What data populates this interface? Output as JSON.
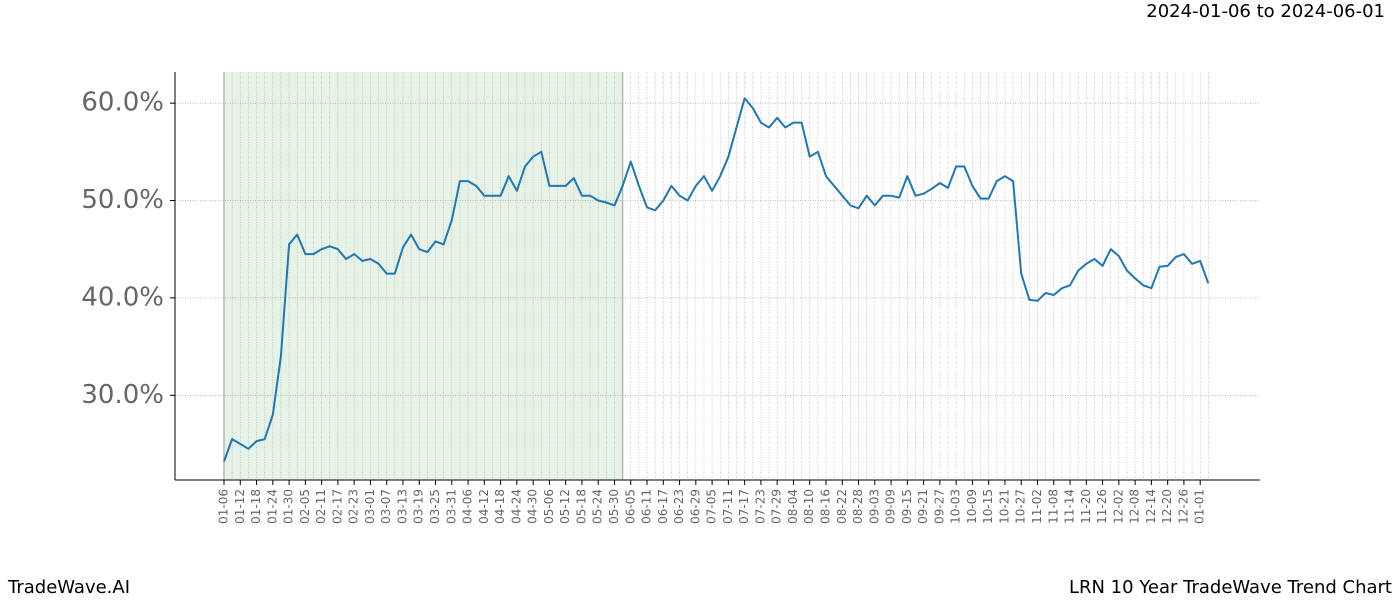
{
  "chart_data": {
    "type": "line",
    "subtitle": "2024-01-06 to 2024-06-01",
    "footer_left": "TradeWave.AI",
    "footer_right": "LRN 10 Year TradeWave Trend Chart",
    "categories": [
      "01-06",
      null,
      "01-12",
      null,
      "01-18",
      null,
      "01-24",
      null,
      "01-30",
      null,
      "02-05",
      null,
      "02-11",
      null,
      "02-17",
      null,
      "02-23",
      null,
      "03-01",
      null,
      "03-07",
      null,
      "03-13",
      null,
      "03-19",
      null,
      "03-25",
      null,
      "03-31",
      null,
      "04-06",
      null,
      "04-12",
      null,
      "04-18",
      null,
      "04-24",
      null,
      "04-30",
      null,
      "05-06",
      null,
      "05-12",
      null,
      "05-18",
      null,
      "05-24",
      null,
      "05-30",
      null,
      "06-05",
      null,
      "06-11",
      null,
      "06-17",
      null,
      "06-23",
      null,
      "06-29",
      null,
      "07-05",
      null,
      "07-11",
      null,
      "07-17",
      null,
      "07-23",
      null,
      "07-29",
      null,
      "08-04",
      null,
      "08-10",
      null,
      "08-16",
      null,
      "08-22",
      null,
      "08-28",
      null,
      "09-03",
      null,
      "09-09",
      null,
      "09-15",
      null,
      "09-21",
      null,
      "09-27",
      null,
      "10-03",
      null,
      "10-09",
      null,
      "10-15",
      null,
      "10-21",
      null,
      "10-27",
      null,
      "11-02",
      null,
      "11-08",
      null,
      "11-14",
      null,
      "11-20",
      null,
      "11-26",
      null,
      "12-02",
      null,
      "12-08",
      null,
      "12-14",
      null,
      "12-20",
      null,
      "12-26",
      null,
      "01-01",
      null
    ],
    "series": [
      {
        "name": "LRN",
        "color": "#1f77b4",
        "values": [
          23.2,
          25.5,
          25,
          24.5,
          25.3,
          25.5,
          28,
          34,
          45.5,
          46.5,
          44.5,
          44.5,
          45,
          45.3,
          45,
          44,
          44.5,
          43.8,
          44,
          43.5,
          42.5,
          42.5,
          45.2,
          46.5,
          45,
          44.7,
          45.8,
          45.5,
          48,
          52,
          52,
          51.5,
          50.5,
          50.5,
          50.5,
          52.5,
          51,
          53.5,
          54.5,
          55,
          51.5,
          51.5,
          51.5,
          52.3,
          50.5,
          50.5,
          50,
          49.8,
          49.5,
          51.5,
          54,
          51.5,
          49.3,
          49,
          50,
          51.5,
          50.5,
          50,
          51.5,
          52.5,
          51,
          52.5,
          54.5,
          57.5,
          60.5,
          59.5,
          58,
          57.5,
          58.5,
          57.5,
          58,
          58,
          54.5,
          55,
          52.5,
          51.5,
          50.5,
          49.5,
          49.2,
          50.5,
          49.5,
          50.5,
          50.5,
          50.3,
          52.5,
          50.5,
          50.7,
          51.2,
          51.8,
          51.3,
          53.5,
          53.5,
          51.5,
          50.2,
          50.2,
          52,
          52.5,
          52,
          42.5,
          39.8,
          39.7,
          40.5,
          40.3,
          41,
          41.3,
          42.8,
          43.5,
          44,
          43.3,
          45,
          44.3,
          42.8,
          42,
          41.3,
          41,
          43.2,
          43.3,
          44.2,
          44.5,
          43.5,
          43.8,
          41.5
        ]
      }
    ],
    "ylim": [
      21.3,
      63.2
    ],
    "yticks": [
      {
        "value": 30,
        "label": "30.0%"
      },
      {
        "value": 40,
        "label": "40.0%"
      },
      {
        "value": 50,
        "label": "50.0%"
      },
      {
        "value": 60,
        "label": "60.0%"
      }
    ],
    "grid": true
  }
}
